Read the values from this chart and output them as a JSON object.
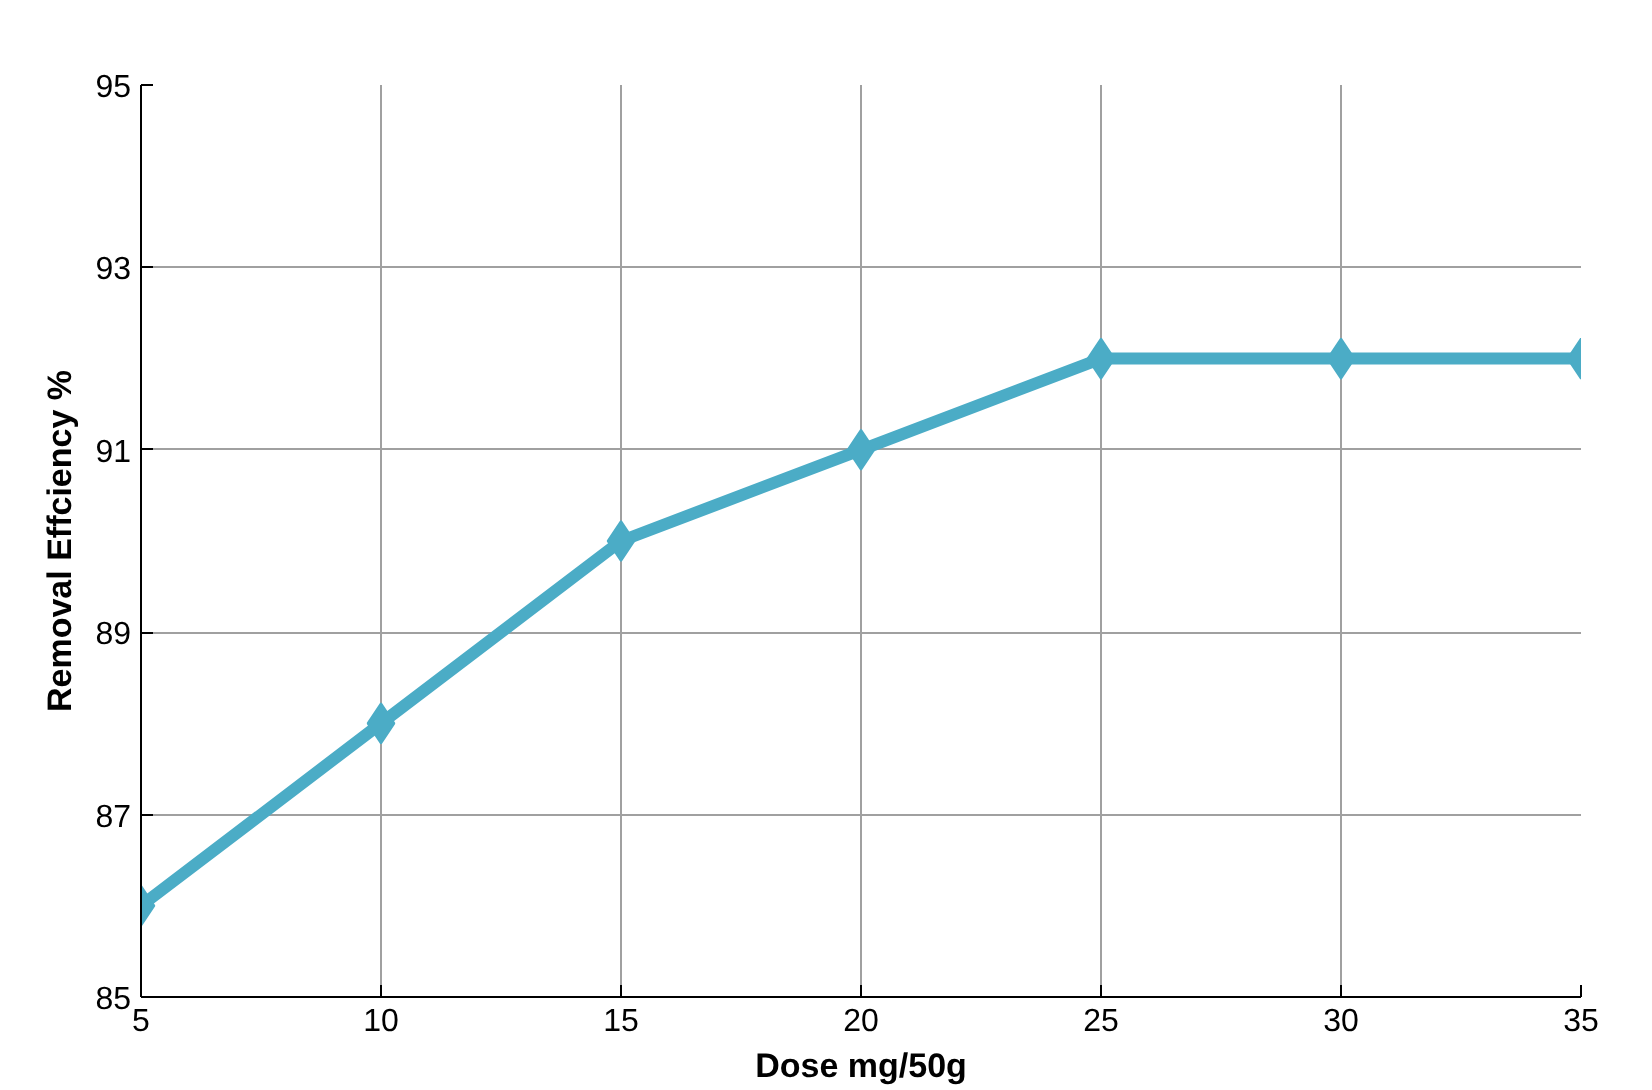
{
  "chart_data": {
    "type": "line",
    "xlabel": "Dose mg/50g",
    "ylabel": "Removal Effciency %",
    "x": [
      5,
      10,
      15,
      20,
      25,
      30,
      35
    ],
    "series": [
      {
        "color": "#4bacc6",
        "values": [
          86,
          88,
          90,
          91,
          92,
          92,
          92
        ]
      }
    ],
    "xlim": [
      5,
      35
    ],
    "xticks": [
      5,
      10,
      15,
      20,
      25,
      30,
      35
    ],
    "ylim": [
      85,
      95
    ],
    "yticks": [
      85,
      87,
      89,
      91,
      93,
      95
    ],
    "grid": true,
    "marker": "diamond",
    "line_style": "solid"
  }
}
